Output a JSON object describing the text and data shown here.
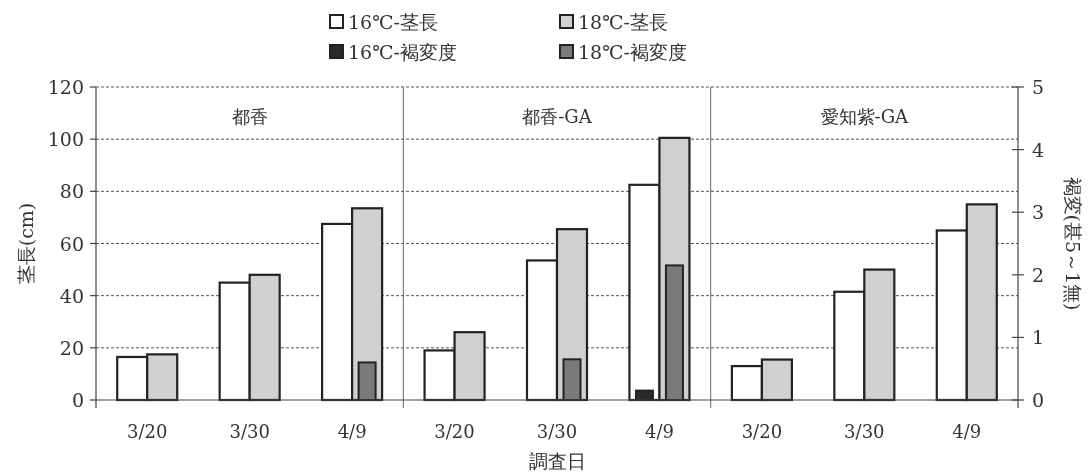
{
  "chart_data": {
    "type": "bar",
    "categories": [
      "3/20",
      "3/30",
      "4/9",
      "3/20",
      "3/30",
      "4/9",
      "3/20",
      "3/30",
      "4/9"
    ],
    "xlabel": "調査日",
    "ylabel": "茎長(cm)",
    "y2label": "褐変(甚5～1無)",
    "ylim": [
      0,
      120
    ],
    "yticks": [
      0,
      20,
      40,
      60,
      80,
      100,
      120
    ],
    "y2lim": [
      0,
      5
    ],
    "y2ticks": [
      0,
      1,
      2,
      3,
      4,
      5
    ],
    "grid": "y",
    "legend": "top",
    "annotations": [
      "都香",
      "都香-GA",
      "愛知紫-GA"
    ],
    "series": [
      {
        "name": "16℃-茎長",
        "color": "#ffffff",
        "values": [
          16.5,
          45,
          67.5,
          19,
          53.5,
          82.5,
          13,
          41.5,
          65
        ]
      },
      {
        "name": "18℃-茎長",
        "color": "#d0d0d0",
        "values": [
          17.5,
          48,
          73.5,
          26,
          65.5,
          100.5,
          15.5,
          50,
          75
        ]
      },
      {
        "name": "16℃-褐変度",
        "color": "#2a2a2a",
        "axis": "y2",
        "values": [
          null,
          null,
          null,
          null,
          null,
          0.15,
          null,
          null,
          null
        ]
      },
      {
        "name": "18℃-褐変度",
        "color": "#7a7a7a",
        "axis": "y2",
        "values": [
          null,
          null,
          0.6,
          null,
          0.65,
          2.15,
          null,
          null,
          null
        ]
      }
    ]
  }
}
